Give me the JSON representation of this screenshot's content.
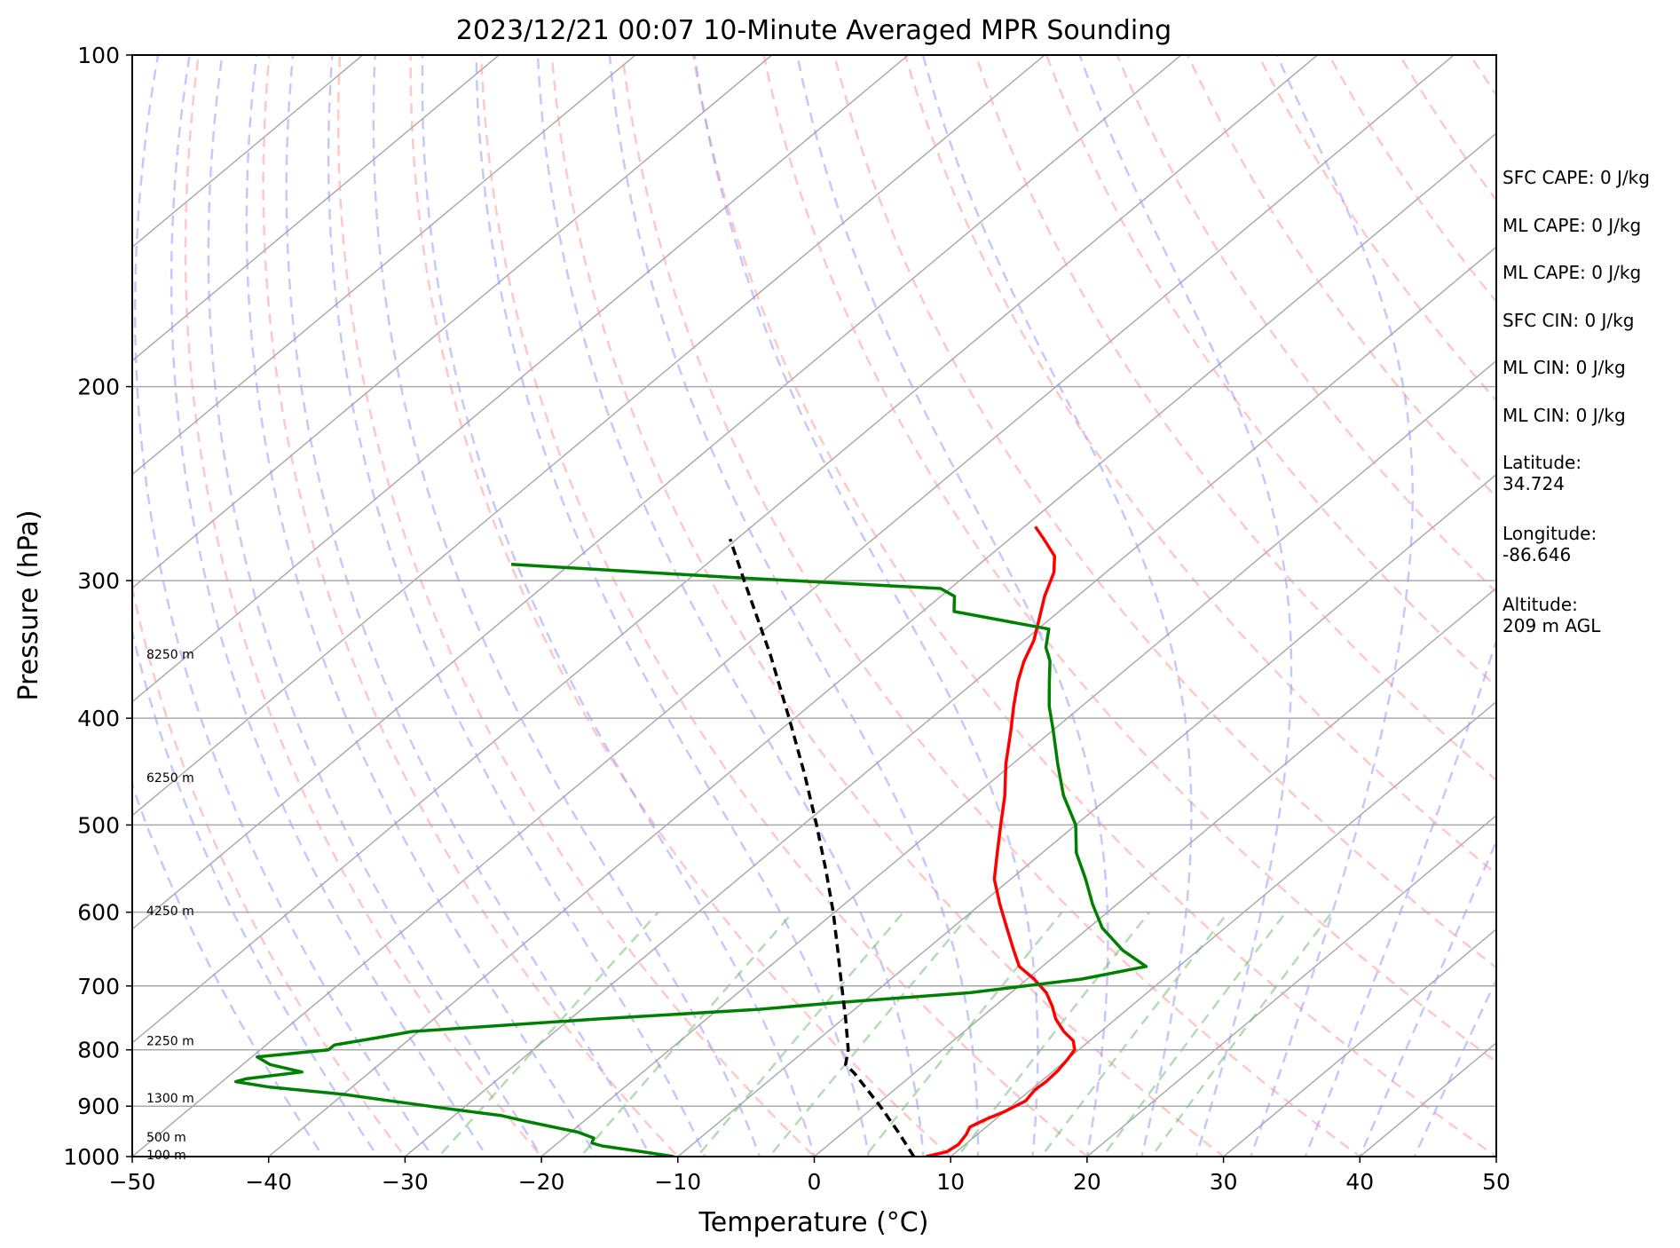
{
  "chart_data": {
    "type": "line",
    "title": "2023/12/21 00:07 10-Minute Averaged MPR Sounding",
    "xlabel": "Temperature (°C)",
    "ylabel": "Pressure (hPa)",
    "xlim": [
      -50,
      50
    ],
    "ylim": [
      1000,
      100
    ],
    "y_scale": "log",
    "skew": "skew-T log-p",
    "x_ticks": [
      "−50",
      "−40",
      "−30",
      "−20",
      "−10",
      "0",
      "10",
      "20",
      "30",
      "40",
      "50"
    ],
    "y_ticks": [
      "100",
      "200",
      "300",
      "400",
      "500",
      "600",
      "700",
      "800",
      "900",
      "1000"
    ],
    "grid": true,
    "altitude_labels": [
      {
        "text": "8250 m",
        "p": 350
      },
      {
        "text": "6250 m",
        "p": 453
      },
      {
        "text": "4250 m",
        "p": 598
      },
      {
        "text": "2250 m",
        "p": 785
      },
      {
        "text": "1300 m",
        "p": 885
      },
      {
        "text": "500 m",
        "p": 960
      },
      {
        "text": "100 m",
        "p": 996
      }
    ],
    "series": [
      {
        "color": "#ff0000",
        "points": [
          [
            1000,
            8.2
          ],
          [
            990,
            9.3
          ],
          [
            975,
            9.5
          ],
          [
            955,
            9.2
          ],
          [
            940,
            8.8
          ],
          [
            925,
            9.3
          ],
          [
            910,
            10.0
          ],
          [
            890,
            10.6
          ],
          [
            870,
            10.3
          ],
          [
            855,
            10.4
          ],
          [
            835,
            10.3
          ],
          [
            815,
            10.0
          ],
          [
            800,
            9.7
          ],
          [
            785,
            8.8
          ],
          [
            770,
            7.3
          ],
          [
            750,
            5.6
          ],
          [
            730,
            4.2
          ],
          [
            710,
            2.6
          ],
          [
            690,
            0.5
          ],
          [
            672,
            -1.7
          ],
          [
            650,
            -3.5
          ],
          [
            620,
            -6.0
          ],
          [
            590,
            -8.6
          ],
          [
            560,
            -11.2
          ],
          [
            530,
            -13.3
          ],
          [
            500,
            -15.5
          ],
          [
            470,
            -17.8
          ],
          [
            440,
            -20.5
          ],
          [
            410,
            -23.1
          ],
          [
            390,
            -25.0
          ],
          [
            370,
            -26.9
          ],
          [
            355,
            -28.2
          ],
          [
            340,
            -29.3
          ],
          [
            325,
            -30.8
          ],
          [
            310,
            -32.4
          ],
          [
            295,
            -33.8
          ],
          [
            285,
            -35.2
          ],
          [
            275,
            -37.5
          ],
          [
            268,
            -39.2
          ]
        ]
      },
      {
        "color": "#008000",
        "points": [
          [
            1000,
            -10.3
          ],
          [
            990,
            -13.0
          ],
          [
            978,
            -16.5
          ],
          [
            972,
            -17.5
          ],
          [
            962,
            -17.8
          ],
          [
            950,
            -19.5
          ],
          [
            930,
            -24.0
          ],
          [
            918,
            -26.5
          ],
          [
            905,
            -31.0
          ],
          [
            890,
            -36.0
          ],
          [
            878,
            -40.0
          ],
          [
            865,
            -46.0
          ],
          [
            855,
            -49.0
          ],
          [
            850,
            -48.5
          ],
          [
            838,
            -45.0
          ],
          [
            825,
            -48.0
          ],
          [
            812,
            -49.6
          ],
          [
            800,
            -45.0
          ],
          [
            792,
            -45.0
          ],
          [
            780,
            -42.5
          ],
          [
            770,
            -40.5
          ],
          [
            750,
            -28.0
          ],
          [
            735,
            -17.0
          ],
          [
            725,
            -12.0
          ],
          [
            710,
            -3.0
          ],
          [
            690,
            4.0
          ],
          [
            672,
            7.6
          ],
          [
            650,
            4.5
          ],
          [
            620,
            1.0
          ],
          [
            590,
            -1.8
          ],
          [
            560,
            -4.5
          ],
          [
            530,
            -7.5
          ],
          [
            500,
            -10.0
          ],
          [
            470,
            -13.5
          ],
          [
            440,
            -16.7
          ],
          [
            410,
            -20.0
          ],
          [
            390,
            -22.4
          ],
          [
            370,
            -24.6
          ],
          [
            355,
            -26.3
          ],
          [
            345,
            -27.8
          ],
          [
            332,
            -29.2
          ],
          [
            320,
            -37.7
          ],
          [
            310,
            -39.0
          ],
          [
            305,
            -40.7
          ],
          [
            298,
            -57.0
          ],
          [
            290,
            -74.3
          ]
        ]
      },
      {
        "color": "#000000",
        "dashed": true,
        "points": [
          [
            1000,
            7.3
          ],
          [
            950,
            4.0
          ],
          [
            900,
            0.4
          ],
          [
            840,
            -4.4
          ],
          [
            825,
            -5.8
          ],
          [
            800,
            -6.9
          ],
          [
            750,
            -9.8
          ],
          [
            700,
            -13.0
          ],
          [
            650,
            -16.4
          ],
          [
            600,
            -20.1
          ],
          [
            550,
            -24.3
          ],
          [
            500,
            -29.0
          ],
          [
            450,
            -34.3
          ],
          [
            400,
            -40.4
          ],
          [
            350,
            -47.4
          ],
          [
            300,
            -55.8
          ],
          [
            275,
            -60.5
          ]
        ]
      }
    ]
  },
  "info_panel": {
    "items": [
      "SFC CAPE: 0 J/kg",
      "ML CAPE: 0 J/kg",
      "ML CAPE: 0 J/kg",
      "SFC CIN: 0 J/kg",
      "ML CIN: 0 J/kg",
      "ML CIN: 0 J/kg",
      "Latitude:\n34.724",
      "Longitude:\n-86.646",
      "Altitude:\n209 m AGL"
    ]
  }
}
